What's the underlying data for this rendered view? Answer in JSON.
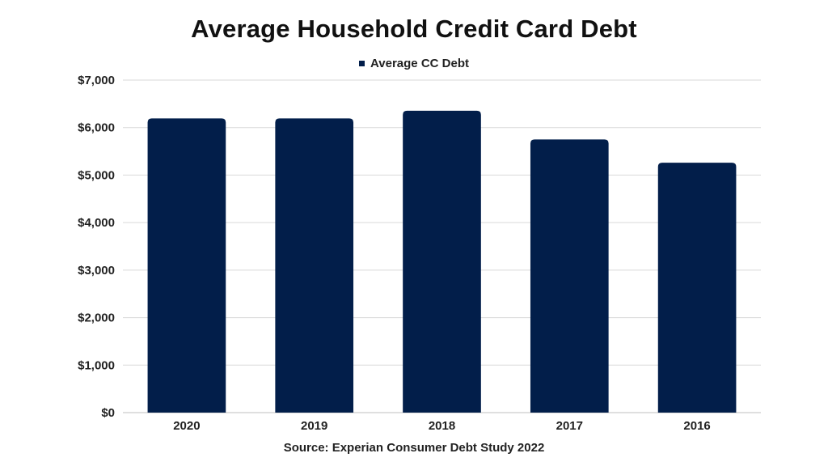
{
  "chart_data": {
    "type": "bar",
    "title": "Average Household Credit Card Debt",
    "source": "Source: Experian Consumer Debt Study 2022",
    "legend_position": "top-center",
    "categories": [
      "2020",
      "2019",
      "2018",
      "2017",
      "2016"
    ],
    "series": [
      {
        "name": "Average CC Debt",
        "color": "#021e4a",
        "values": [
          6194,
          6194,
          6354,
          5751,
          5261
        ]
      }
    ],
    "y_ticks": [
      "$0",
      "$1,000",
      "$2,000",
      "$3,000",
      "$4,000",
      "$5,000",
      "$6,000",
      "$7,000"
    ],
    "ylim": [
      0,
      7000
    ],
    "grid": true
  }
}
